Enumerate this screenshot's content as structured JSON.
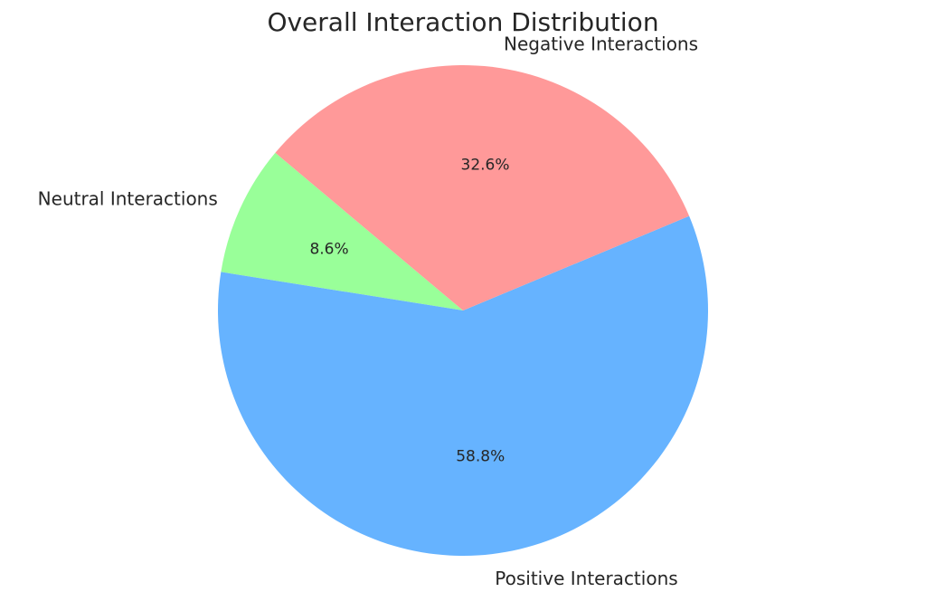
{
  "chart_data": {
    "type": "pie",
    "title": "Overall Interaction Distribution",
    "start_angle_deg": 140,
    "direction": "counterclockwise",
    "slices": [
      {
        "label": "Neutral Interactions",
        "value": 8.6,
        "pct_label": "8.6%",
        "color": "#99ff99"
      },
      {
        "label": "Positive Interactions",
        "value": 58.8,
        "pct_label": "58.8%",
        "color": "#66b3ff"
      },
      {
        "label": "Negative Interactions",
        "value": 32.6,
        "pct_label": "32.6%",
        "color": "#ff9999"
      }
    ]
  }
}
